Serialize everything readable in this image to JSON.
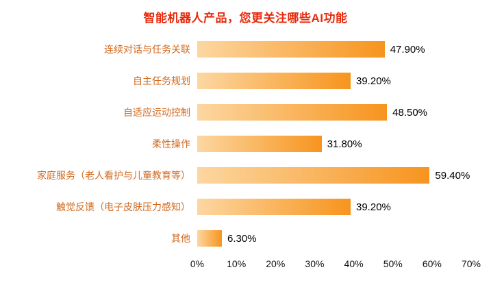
{
  "chart_data": {
    "type": "bar",
    "orientation": "horizontal",
    "title": "智能机器人产品，您更关注哪些AI功能",
    "categories": [
      "连续对话与任务关联",
      "自主任务规划",
      "自适应运动控制",
      "柔性操作",
      "家庭服务（老人看护与儿童教育等）",
      "触觉反馈（电子皮肤压力感知）",
      "其他"
    ],
    "values": [
      47.9,
      39.2,
      48.5,
      31.8,
      59.4,
      39.2,
      6.3
    ],
    "value_labels": [
      "47.90%",
      "39.20%",
      "48.50%",
      "31.80%",
      "59.40%",
      "39.20%",
      "6.30%"
    ],
    "xlabel": "",
    "ylabel": "",
    "xlim": [
      0,
      70
    ],
    "x_ticks": [
      "0%",
      "10%",
      "20%",
      "30%",
      "40%",
      "50%",
      "60%",
      "70%"
    ],
    "grid": false,
    "legend": "none",
    "colors": {
      "title": "#e8290b",
      "category_label": "#d2691e",
      "bar_gradient_start": "#fcd7a1",
      "bar_gradient_end": "#f7941e",
      "value_label": "#000000",
      "tick_label": "#111111"
    }
  }
}
